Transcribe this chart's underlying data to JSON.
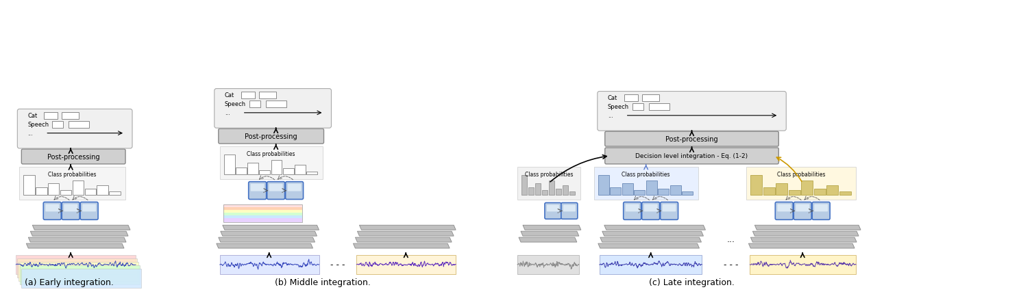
{
  "bg_color": "#ffffff",
  "panels": [
    "(a) Early integration.",
    "(b) Middle integration.",
    "(c) Late integration."
  ]
}
